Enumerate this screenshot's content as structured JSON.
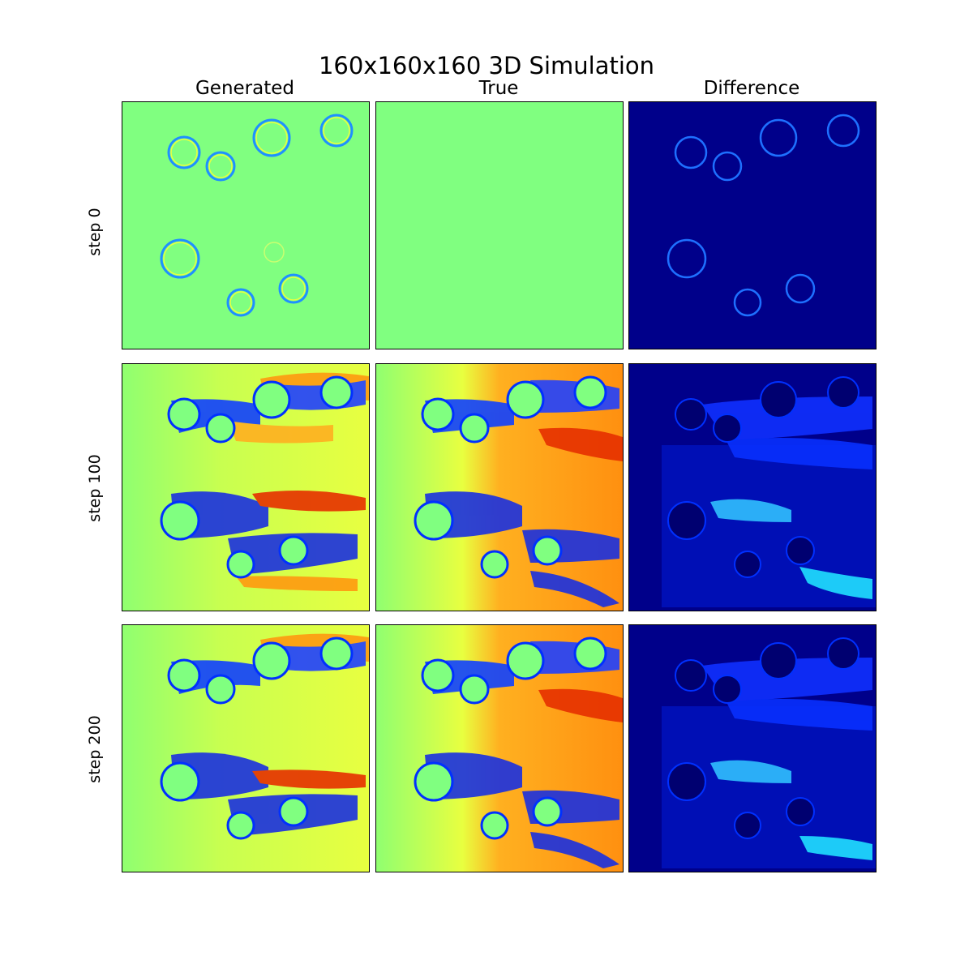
{
  "figure": {
    "title": "160x160x160 3D Simulation",
    "columns": [
      "Generated",
      "True",
      "Difference"
    ],
    "rows": [
      "step 0",
      "step 100",
      "step 200"
    ]
  },
  "colormap": "jet",
  "colors": {
    "background_field": "#80ff80",
    "difference_background": "#00008a",
    "cylinder_edge_blue": "#0030ff",
    "wake_orange": "#ff9a10",
    "wake_red": "#e63000",
    "wake_yellow": "#e8ff40",
    "difference_highlight": "#20e0ff"
  }
}
